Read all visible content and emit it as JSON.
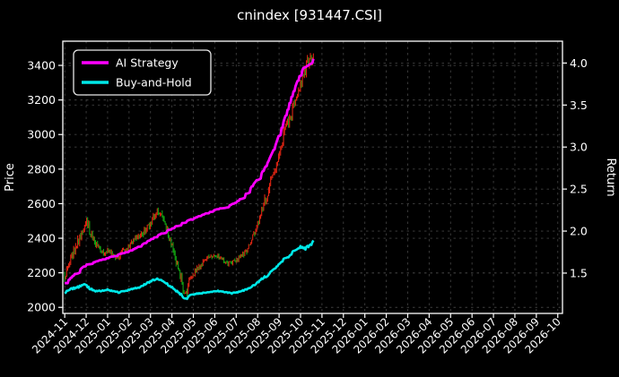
{
  "figure": {
    "title": "cnindex [931447.CSI]"
  },
  "chart": {
    "title": "cnindex [931447.CSI]",
    "axes": {
      "left_label": "Price",
      "right_label": "Return",
      "price_tick_labels": [
        "2000",
        "2200",
        "2400",
        "2600",
        "2800",
        "3000",
        "3200",
        "3400"
      ],
      "return_tick_labels": [
        "1.5",
        "2.0",
        "2.5",
        "3.0",
        "3.5",
        "4.0"
      ],
      "x_tick_labels": [
        "2024-11",
        "2024-12",
        "2025-01",
        "2025-02",
        "2025-03",
        "2025-04",
        "2025-05",
        "2025-06",
        "2025-07",
        "2025-08",
        "2025-09",
        "2025-10",
        "2025-11",
        "2025-12",
        "2026-01",
        "2026-02",
        "2026-03",
        "2026-04",
        "2026-05",
        "2026-06",
        "2026-07",
        "2026-08",
        "2026-09",
        "2026-10"
      ]
    },
    "legend": {
      "items": [
        {
          "label": "AI Strategy",
          "color": "#ff00ff"
        },
        {
          "label": "Buy-and-Hold",
          "color": "#00e8e8"
        }
      ]
    },
    "colors": {
      "background": "#000000",
      "text": "#ffffff",
      "grid": "#3f3f3f",
      "spine": "#ffffff",
      "ai_strategy": "#ff00ff",
      "buy_and_hold": "#00e8e8",
      "bar_up": "#df2412",
      "bar_down": "#12a312"
    }
  },
  "chart_data": {
    "type": "line",
    "title": "cnindex [931447.CSI]",
    "xlabel": "",
    "x_axis": {
      "unit": "month",
      "tick_start": "2024-11",
      "tick_end": "2026-10",
      "months_shown": 24,
      "xlim_months": [
        -0.09,
        23.22
      ]
    },
    "left_axis": {
      "label": "Price",
      "ylim": [
        1965,
        3540
      ],
      "ticks": [
        2000,
        2200,
        2400,
        2600,
        2800,
        3000,
        3200,
        3400
      ]
    },
    "right_axis": {
      "label": "Return",
      "ylim": [
        1.02,
        4.26
      ],
      "ticks": [
        1.5,
        2.0,
        2.5,
        3.0,
        3.5,
        4.0
      ]
    },
    "grid": "both axes, dashed dark gray",
    "legend_position": "upper left",
    "data_extent_months": 11.6,
    "data_extent_note": "plotted data runs 2024-11 to mid 2025-10; axis continues empty to 2026-10",
    "series": [
      {
        "name": "cnindex daily price bars",
        "axis": "left",
        "style": "thin vertical high-low bars (red = up day, green = down day)",
        "keyframes": [
          [
            0,
            2185
          ],
          [
            0.25,
            2270
          ],
          [
            0.5,
            2340
          ],
          [
            0.8,
            2440
          ],
          [
            1.05,
            2490
          ],
          [
            1.2,
            2430
          ],
          [
            1.5,
            2350
          ],
          [
            1.8,
            2310
          ],
          [
            2.1,
            2330
          ],
          [
            2.4,
            2275
          ],
          [
            2.7,
            2330
          ],
          [
            3.0,
            2350
          ],
          [
            3.3,
            2400
          ],
          [
            3.7,
            2430
          ],
          [
            4.0,
            2480
          ],
          [
            4.3,
            2555
          ],
          [
            4.6,
            2510
          ],
          [
            4.9,
            2400
          ],
          [
            5.2,
            2270
          ],
          [
            5.5,
            2130
          ],
          [
            5.65,
            2075
          ],
          [
            5.8,
            2140
          ],
          [
            6.1,
            2210
          ],
          [
            6.4,
            2255
          ],
          [
            6.7,
            2290
          ],
          [
            7.0,
            2310
          ],
          [
            7.3,
            2285
          ],
          [
            7.6,
            2255
          ],
          [
            7.9,
            2265
          ],
          [
            8.2,
            2290
          ],
          [
            8.5,
            2330
          ],
          [
            8.8,
            2420
          ],
          [
            9.1,
            2520
          ],
          [
            9.4,
            2640
          ],
          [
            9.7,
            2760
          ],
          [
            10.0,
            2900
          ],
          [
            10.3,
            3020
          ],
          [
            10.6,
            3140
          ],
          [
            10.9,
            3270
          ],
          [
            11.2,
            3370
          ],
          [
            11.45,
            3435
          ],
          [
            11.6,
            3440
          ]
        ],
        "volatility_keyframes": [
          [
            0,
            26
          ],
          [
            0.8,
            30
          ],
          [
            1.5,
            22
          ],
          [
            2.5,
            18
          ],
          [
            3.5,
            22
          ],
          [
            4.3,
            26
          ],
          [
            5.0,
            24
          ],
          [
            5.65,
            30
          ],
          [
            6.2,
            18
          ],
          [
            7.0,
            14
          ],
          [
            8.0,
            14
          ],
          [
            8.8,
            22
          ],
          [
            9.5,
            32
          ],
          [
            10.3,
            42
          ],
          [
            11.0,
            40
          ],
          [
            11.6,
            36
          ]
        ]
      },
      {
        "name": "AI Strategy",
        "axis": "right",
        "style": "thick stepped line, mostly monotone rising",
        "color": "#ff00ff",
        "keyframes": [
          [
            0,
            1.38
          ],
          [
            0.3,
            1.45
          ],
          [
            0.6,
            1.52
          ],
          [
            1.0,
            1.6
          ],
          [
            1.5,
            1.64
          ],
          [
            2.0,
            1.68
          ],
          [
            2.5,
            1.72
          ],
          [
            3.0,
            1.76
          ],
          [
            3.5,
            1.82
          ],
          [
            4.0,
            1.9
          ],
          [
            4.5,
            1.97
          ],
          [
            5.0,
            2.03
          ],
          [
            5.5,
            2.1
          ],
          [
            6.0,
            2.15
          ],
          [
            6.5,
            2.2
          ],
          [
            7.0,
            2.25
          ],
          [
            7.5,
            2.29
          ],
          [
            8.0,
            2.34
          ],
          [
            8.5,
            2.46
          ],
          [
            9.0,
            2.62
          ],
          [
            9.4,
            2.78
          ],
          [
            9.8,
            3.0
          ],
          [
            10.2,
            3.3
          ],
          [
            10.6,
            3.62
          ],
          [
            11.0,
            3.88
          ],
          [
            11.3,
            4.02
          ],
          [
            11.6,
            4.06
          ]
        ]
      },
      {
        "name": "Buy-and-Hold",
        "axis": "right",
        "style": "thick wiggly line",
        "color": "#00e8e8",
        "keyframes": [
          [
            0,
            1.27
          ],
          [
            0.3,
            1.31
          ],
          [
            0.6,
            1.33
          ],
          [
            0.9,
            1.37
          ],
          [
            1.2,
            1.31
          ],
          [
            1.5,
            1.28
          ],
          [
            2.0,
            1.3
          ],
          [
            2.5,
            1.27
          ],
          [
            3.0,
            1.3
          ],
          [
            3.5,
            1.33
          ],
          [
            4.0,
            1.4
          ],
          [
            4.3,
            1.43
          ],
          [
            4.6,
            1.4
          ],
          [
            5.0,
            1.33
          ],
          [
            5.4,
            1.25
          ],
          [
            5.65,
            1.19
          ],
          [
            5.9,
            1.24
          ],
          [
            6.3,
            1.26
          ],
          [
            6.7,
            1.27
          ],
          [
            7.0,
            1.29
          ],
          [
            7.4,
            1.28
          ],
          [
            7.8,
            1.26
          ],
          [
            8.2,
            1.28
          ],
          [
            8.6,
            1.32
          ],
          [
            8.9,
            1.37
          ],
          [
            9.2,
            1.43
          ],
          [
            9.5,
            1.48
          ],
          [
            9.8,
            1.56
          ],
          [
            10.1,
            1.64
          ],
          [
            10.4,
            1.68
          ],
          [
            10.7,
            1.77
          ],
          [
            11.0,
            1.82
          ],
          [
            11.2,
            1.79
          ],
          [
            11.45,
            1.83
          ],
          [
            11.6,
            1.88
          ]
        ]
      }
    ],
    "note": "keyframes are [months since 2024-11-01, value] digitized from the rendered plot; daily bars are interpolated from keyframes with seeded noise"
  }
}
